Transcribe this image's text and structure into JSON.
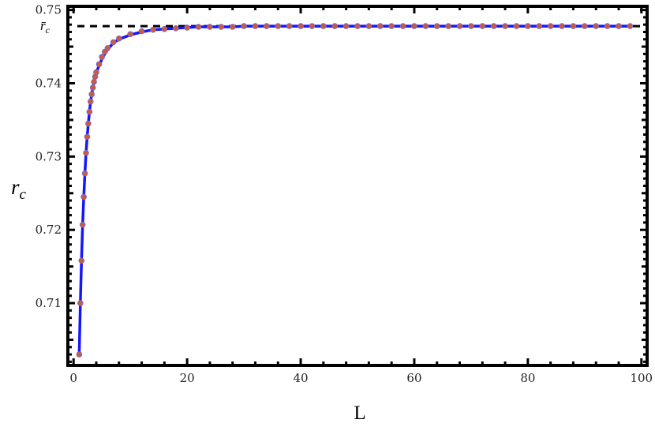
{
  "chart_data": {
    "type": "line",
    "xlabel": "L",
    "ylabel": "r",
    "ylabel_sub": "c",
    "xlim": [
      -1,
      101
    ],
    "ylim": [
      0.7015,
      0.7505
    ],
    "x_ticks": [
      0,
      20,
      40,
      60,
      80,
      100
    ],
    "x_tick_labels": [
      "0",
      "20",
      "40",
      "60",
      "80",
      "100"
    ],
    "y_ticks": [
      0.71,
      0.72,
      0.73,
      0.74,
      0.75
    ],
    "y_tick_labels": [
      "0.71",
      "0.72",
      "0.73",
      "0.74",
      "0.75"
    ],
    "reference_line": {
      "y": 0.7478,
      "label": "r̄",
      "label_sub": "c",
      "style": "dashed",
      "color": "#000000"
    },
    "grid": false,
    "series": [
      {
        "style": "points",
        "color": "#cc5a3c",
        "x": [
          1,
          1.2,
          1.4,
          1.6,
          1.8,
          2,
          2.2,
          2.4,
          2.6,
          2.8,
          3,
          3.2,
          3.4,
          3.6,
          3.8,
          4,
          4.5,
          5,
          5.5,
          6,
          7,
          8,
          10,
          12,
          14,
          16,
          18,
          20,
          22,
          24,
          26,
          28,
          30,
          32,
          34,
          36,
          38,
          40,
          42,
          44,
          46,
          48,
          50,
          52,
          54,
          56,
          58,
          60,
          62,
          64,
          66,
          68,
          70,
          72,
          74,
          76,
          78,
          80,
          82,
          84,
          86,
          88,
          90,
          92,
          94,
          96,
          98
        ],
        "y": [
          0.703,
          0.71,
          0.7158,
          0.7207,
          0.7245,
          0.7277,
          0.7305,
          0.7327,
          0.7345,
          0.7361,
          0.7375,
          0.7385,
          0.7394,
          0.7402,
          0.7409,
          0.7415,
          0.7426,
          0.7436,
          0.7443,
          0.7448,
          0.7456,
          0.7461,
          0.7467,
          0.7471,
          0.7473,
          0.7474,
          0.7475,
          0.7476,
          0.7477,
          0.7477,
          0.7477,
          0.7477,
          0.7478,
          0.7478,
          0.7478,
          0.7478,
          0.7478,
          0.7478,
          0.7478,
          0.7478,
          0.7478,
          0.7478,
          0.7478,
          0.7478,
          0.7478,
          0.7478,
          0.7478,
          0.7478,
          0.7478,
          0.7478,
          0.7478,
          0.7478,
          0.7478,
          0.7478,
          0.7478,
          0.7478,
          0.7478,
          0.7478,
          0.7478,
          0.7478,
          0.7478,
          0.7478,
          0.7478,
          0.7478,
          0.7478,
          0.7478,
          0.7478
        ]
      },
      {
        "style": "line",
        "color": "#1515ff",
        "x": [
          1,
          1.2,
          1.4,
          1.6,
          1.8,
          2,
          2.2,
          2.4,
          2.6,
          2.8,
          3,
          3.2,
          3.4,
          3.6,
          3.8,
          4,
          4.5,
          5,
          5.5,
          6,
          7,
          8,
          10,
          12,
          14,
          16,
          18,
          20,
          22,
          24,
          26,
          28,
          30,
          40,
          50,
          60,
          70,
          80,
          90,
          98
        ],
        "y": [
          0.703,
          0.71,
          0.7158,
          0.7207,
          0.7245,
          0.7277,
          0.7305,
          0.7327,
          0.7345,
          0.7361,
          0.7375,
          0.7385,
          0.7394,
          0.7402,
          0.7409,
          0.7415,
          0.7424,
          0.7433,
          0.744,
          0.7446,
          0.7455,
          0.746,
          0.7466,
          0.747,
          0.7473,
          0.7474,
          0.7475,
          0.7476,
          0.7477,
          0.7477,
          0.7477,
          0.7477,
          0.7478,
          0.7478,
          0.7478,
          0.7478,
          0.7478,
          0.7478,
          0.7478,
          0.7478
        ]
      }
    ]
  }
}
